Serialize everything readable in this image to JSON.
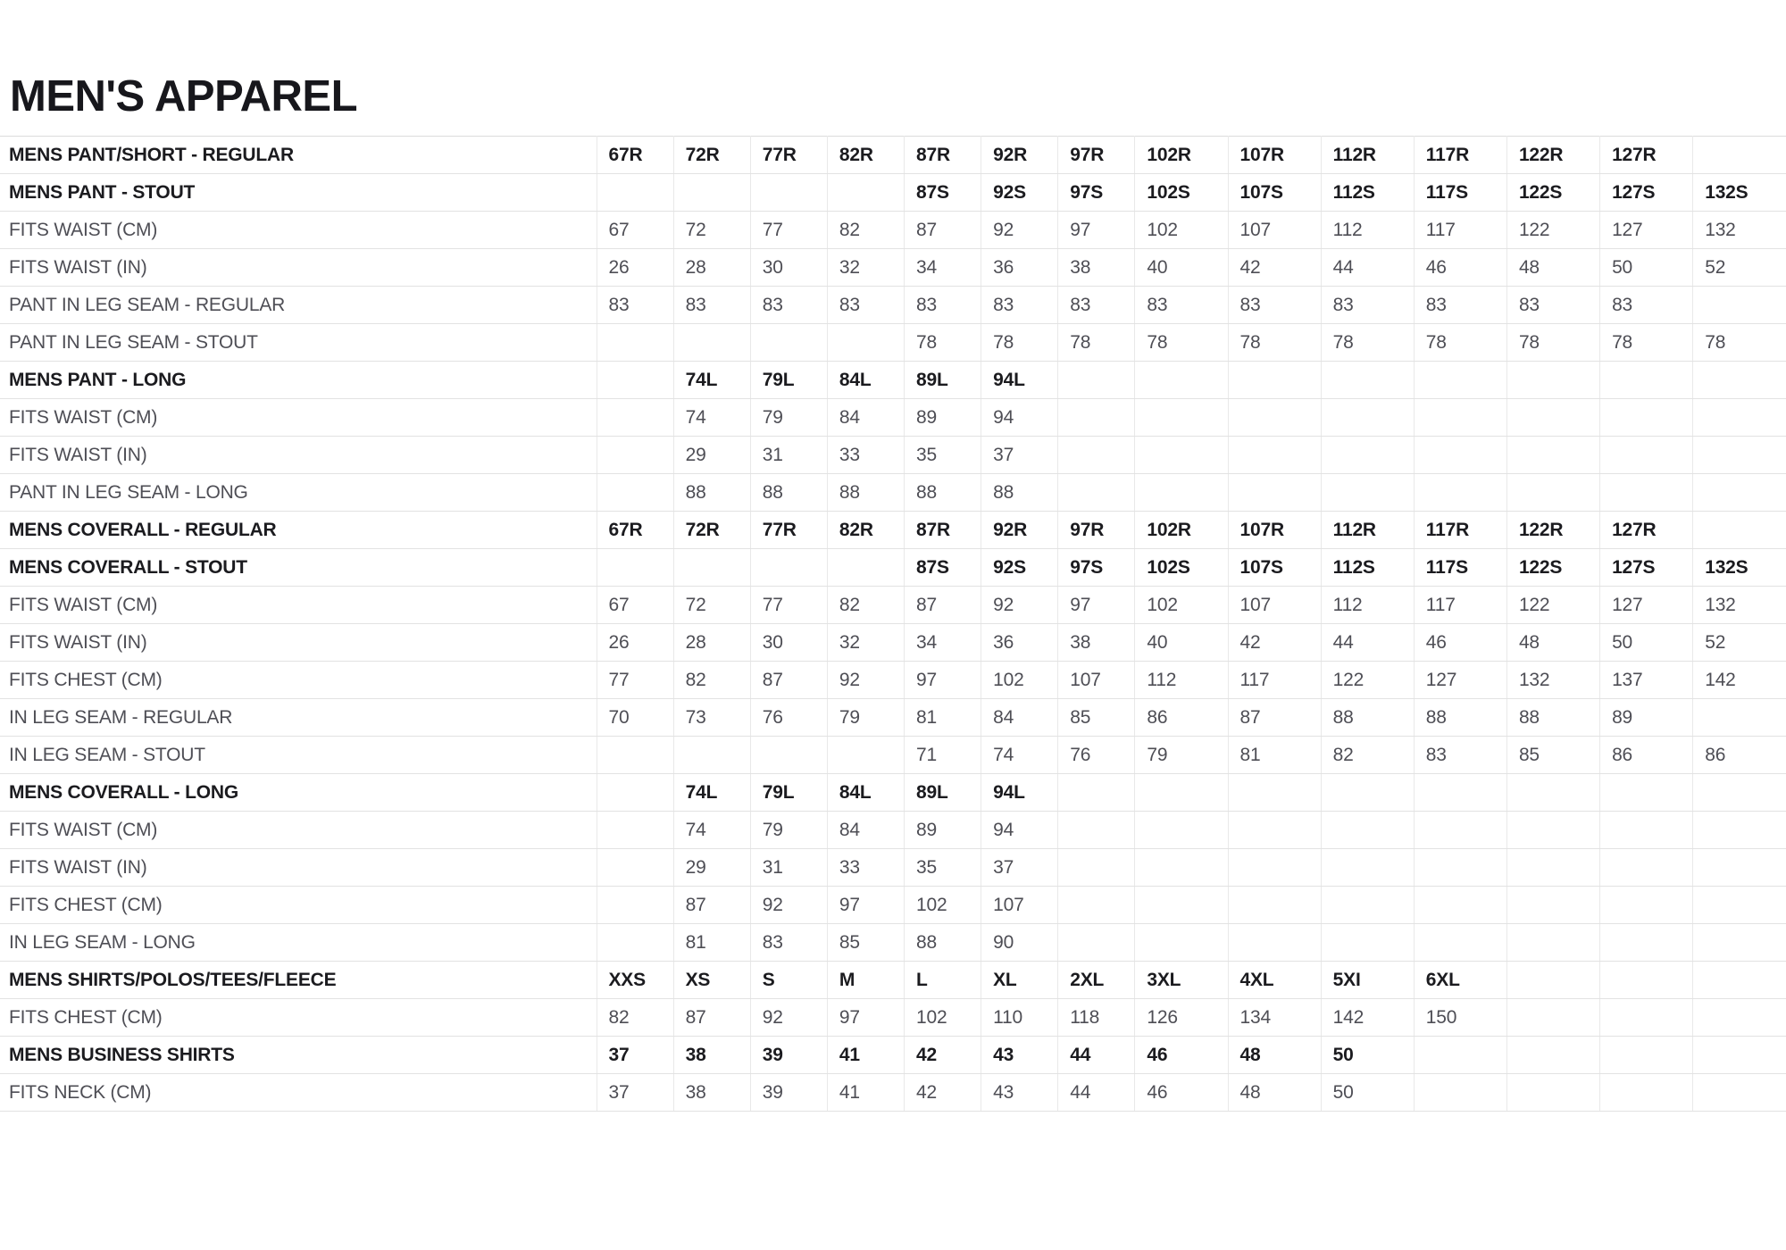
{
  "title": "MEN'S APPAREL",
  "colors": {
    "background": "#ffffff",
    "title_text": "#17171c",
    "section_row_text": "#1b1b1f",
    "data_row_text": "#4e4e55",
    "grid_line": "#e2e2e2"
  },
  "table": {
    "data_column_count": 14,
    "rows": [
      {
        "label": "MENS PANT/SHORT - REGULAR",
        "style": "section",
        "values": [
          "67R",
          "72R",
          "77R",
          "82R",
          "87R",
          "92R",
          "97R",
          "102R",
          "107R",
          "112R",
          "117R",
          "122R",
          "127R",
          ""
        ]
      },
      {
        "label": "MENS PANT - STOUT",
        "style": "section",
        "values": [
          "",
          "",
          "",
          "",
          "87S",
          "92S",
          "97S",
          "102S",
          "107S",
          "112S",
          "117S",
          "122S",
          "127S",
          "132S"
        ]
      },
      {
        "label": "FITS WAIST (CM)",
        "style": "data",
        "values": [
          "67",
          "72",
          "77",
          "82",
          "87",
          "92",
          "97",
          "102",
          "107",
          "112",
          "117",
          "122",
          "127",
          "132"
        ]
      },
      {
        "label": "FITS WAIST (IN)",
        "style": "data",
        "values": [
          "26",
          "28",
          "30",
          "32",
          "34",
          "36",
          "38",
          "40",
          "42",
          "44",
          "46",
          "48",
          "50",
          "52"
        ]
      },
      {
        "label": "PANT IN LEG SEAM - REGULAR",
        "style": "data",
        "values": [
          "83",
          "83",
          "83",
          "83",
          "83",
          "83",
          "83",
          "83",
          "83",
          "83",
          "83",
          "83",
          "83",
          ""
        ]
      },
      {
        "label": "PANT IN LEG SEAM - STOUT",
        "style": "data",
        "values": [
          "",
          "",
          "",
          "",
          "78",
          "78",
          "78",
          "78",
          "78",
          "78",
          "78",
          "78",
          "78",
          "78"
        ]
      },
      {
        "label": "MENS PANT - LONG",
        "style": "section",
        "values": [
          "",
          "74L",
          "79L",
          "84L",
          "89L",
          "94L",
          "",
          "",
          "",
          "",
          "",
          "",
          "",
          ""
        ]
      },
      {
        "label": "FITS WAIST (CM)",
        "style": "data",
        "values": [
          "",
          "74",
          "79",
          "84",
          "89",
          "94",
          "",
          "",
          "",
          "",
          "",
          "",
          "",
          ""
        ]
      },
      {
        "label": "FITS WAIST (IN)",
        "style": "data",
        "values": [
          "",
          "29",
          "31",
          "33",
          "35",
          "37",
          "",
          "",
          "",
          "",
          "",
          "",
          "",
          ""
        ]
      },
      {
        "label": "PANT IN LEG SEAM - LONG",
        "style": "data",
        "values": [
          "",
          "88",
          "88",
          "88",
          "88",
          "88",
          "",
          "",
          "",
          "",
          "",
          "",
          "",
          ""
        ]
      },
      {
        "label": "MENS COVERALL - REGULAR",
        "style": "section",
        "values": [
          "67R",
          "72R",
          "77R",
          "82R",
          "87R",
          "92R",
          "97R",
          "102R",
          "107R",
          "112R",
          "117R",
          "122R",
          "127R",
          ""
        ]
      },
      {
        "label": "MENS COVERALL - STOUT",
        "style": "section",
        "values": [
          "",
          "",
          "",
          "",
          "87S",
          "92S",
          "97S",
          "102S",
          "107S",
          "112S",
          "117S",
          "122S",
          "127S",
          "132S"
        ]
      },
      {
        "label": "FITS WAIST (CM)",
        "style": "data",
        "values": [
          "67",
          "72",
          "77",
          "82",
          "87",
          "92",
          "97",
          "102",
          "107",
          "112",
          "117",
          "122",
          "127",
          "132"
        ]
      },
      {
        "label": "FITS WAIST (IN)",
        "style": "data",
        "values": [
          "26",
          "28",
          "30",
          "32",
          "34",
          "36",
          "38",
          "40",
          "42",
          "44",
          "46",
          "48",
          "50",
          "52"
        ]
      },
      {
        "label": "FITS CHEST (CM)",
        "style": "data",
        "values": [
          "77",
          "82",
          "87",
          "92",
          "97",
          "102",
          "107",
          "112",
          "117",
          "122",
          "127",
          "132",
          "137",
          "142"
        ]
      },
      {
        "label": "IN LEG SEAM - REGULAR",
        "style": "data",
        "values": [
          "70",
          "73",
          "76",
          "79",
          "81",
          "84",
          "85",
          "86",
          "87",
          "88",
          "88",
          "88",
          "89",
          ""
        ]
      },
      {
        "label": "IN LEG SEAM - STOUT",
        "style": "data",
        "values": [
          "",
          "",
          "",
          "",
          "71",
          "74",
          "76",
          "79",
          "81",
          "82",
          "83",
          "85",
          "86",
          "86"
        ]
      },
      {
        "label": "MENS COVERALL - LONG",
        "style": "section",
        "values": [
          "",
          "74L",
          "79L",
          "84L",
          "89L",
          "94L",
          "",
          "",
          "",
          "",
          "",
          "",
          "",
          ""
        ]
      },
      {
        "label": "FITS WAIST (CM)",
        "style": "data",
        "values": [
          "",
          "74",
          "79",
          "84",
          "89",
          "94",
          "",
          "",
          "",
          "",
          "",
          "",
          "",
          ""
        ]
      },
      {
        "label": "FITS WAIST (IN)",
        "style": "data",
        "values": [
          "",
          "29",
          "31",
          "33",
          "35",
          "37",
          "",
          "",
          "",
          "",
          "",
          "",
          "",
          ""
        ]
      },
      {
        "label": "FITS CHEST (CM)",
        "style": "data",
        "values": [
          "",
          "87",
          "92",
          "97",
          "102",
          "107",
          "",
          "",
          "",
          "",
          "",
          "",
          "",
          ""
        ]
      },
      {
        "label": "IN LEG SEAM - LONG",
        "style": "data",
        "values": [
          "",
          "81",
          "83",
          "85",
          "88",
          "90",
          "",
          "",
          "",
          "",
          "",
          "",
          "",
          ""
        ]
      },
      {
        "label": "MENS SHIRTS/POLOS/TEES/FLEECE",
        "style": "section",
        "values": [
          "XXS",
          "XS",
          "S",
          "M",
          "L",
          "XL",
          "2XL",
          "3XL",
          "4XL",
          "5XI",
          "6XL",
          "",
          "",
          ""
        ]
      },
      {
        "label": "FITS CHEST (CM)",
        "style": "data",
        "values": [
          "82",
          "87",
          "92",
          "97",
          "102",
          "110",
          "118",
          "126",
          "134",
          "142",
          "150",
          "",
          "",
          ""
        ]
      },
      {
        "label": "MENS BUSINESS SHIRTS",
        "style": "section",
        "values": [
          "37",
          "38",
          "39",
          "41",
          "42",
          "43",
          "44",
          "46",
          "48",
          "50",
          "",
          "",
          "",
          ""
        ]
      },
      {
        "label": "FITS NECK (CM)",
        "style": "data",
        "values": [
          "37",
          "38",
          "39",
          "41",
          "42",
          "43",
          "44",
          "46",
          "48",
          "50",
          "",
          "",
          "",
          ""
        ]
      }
    ]
  }
}
